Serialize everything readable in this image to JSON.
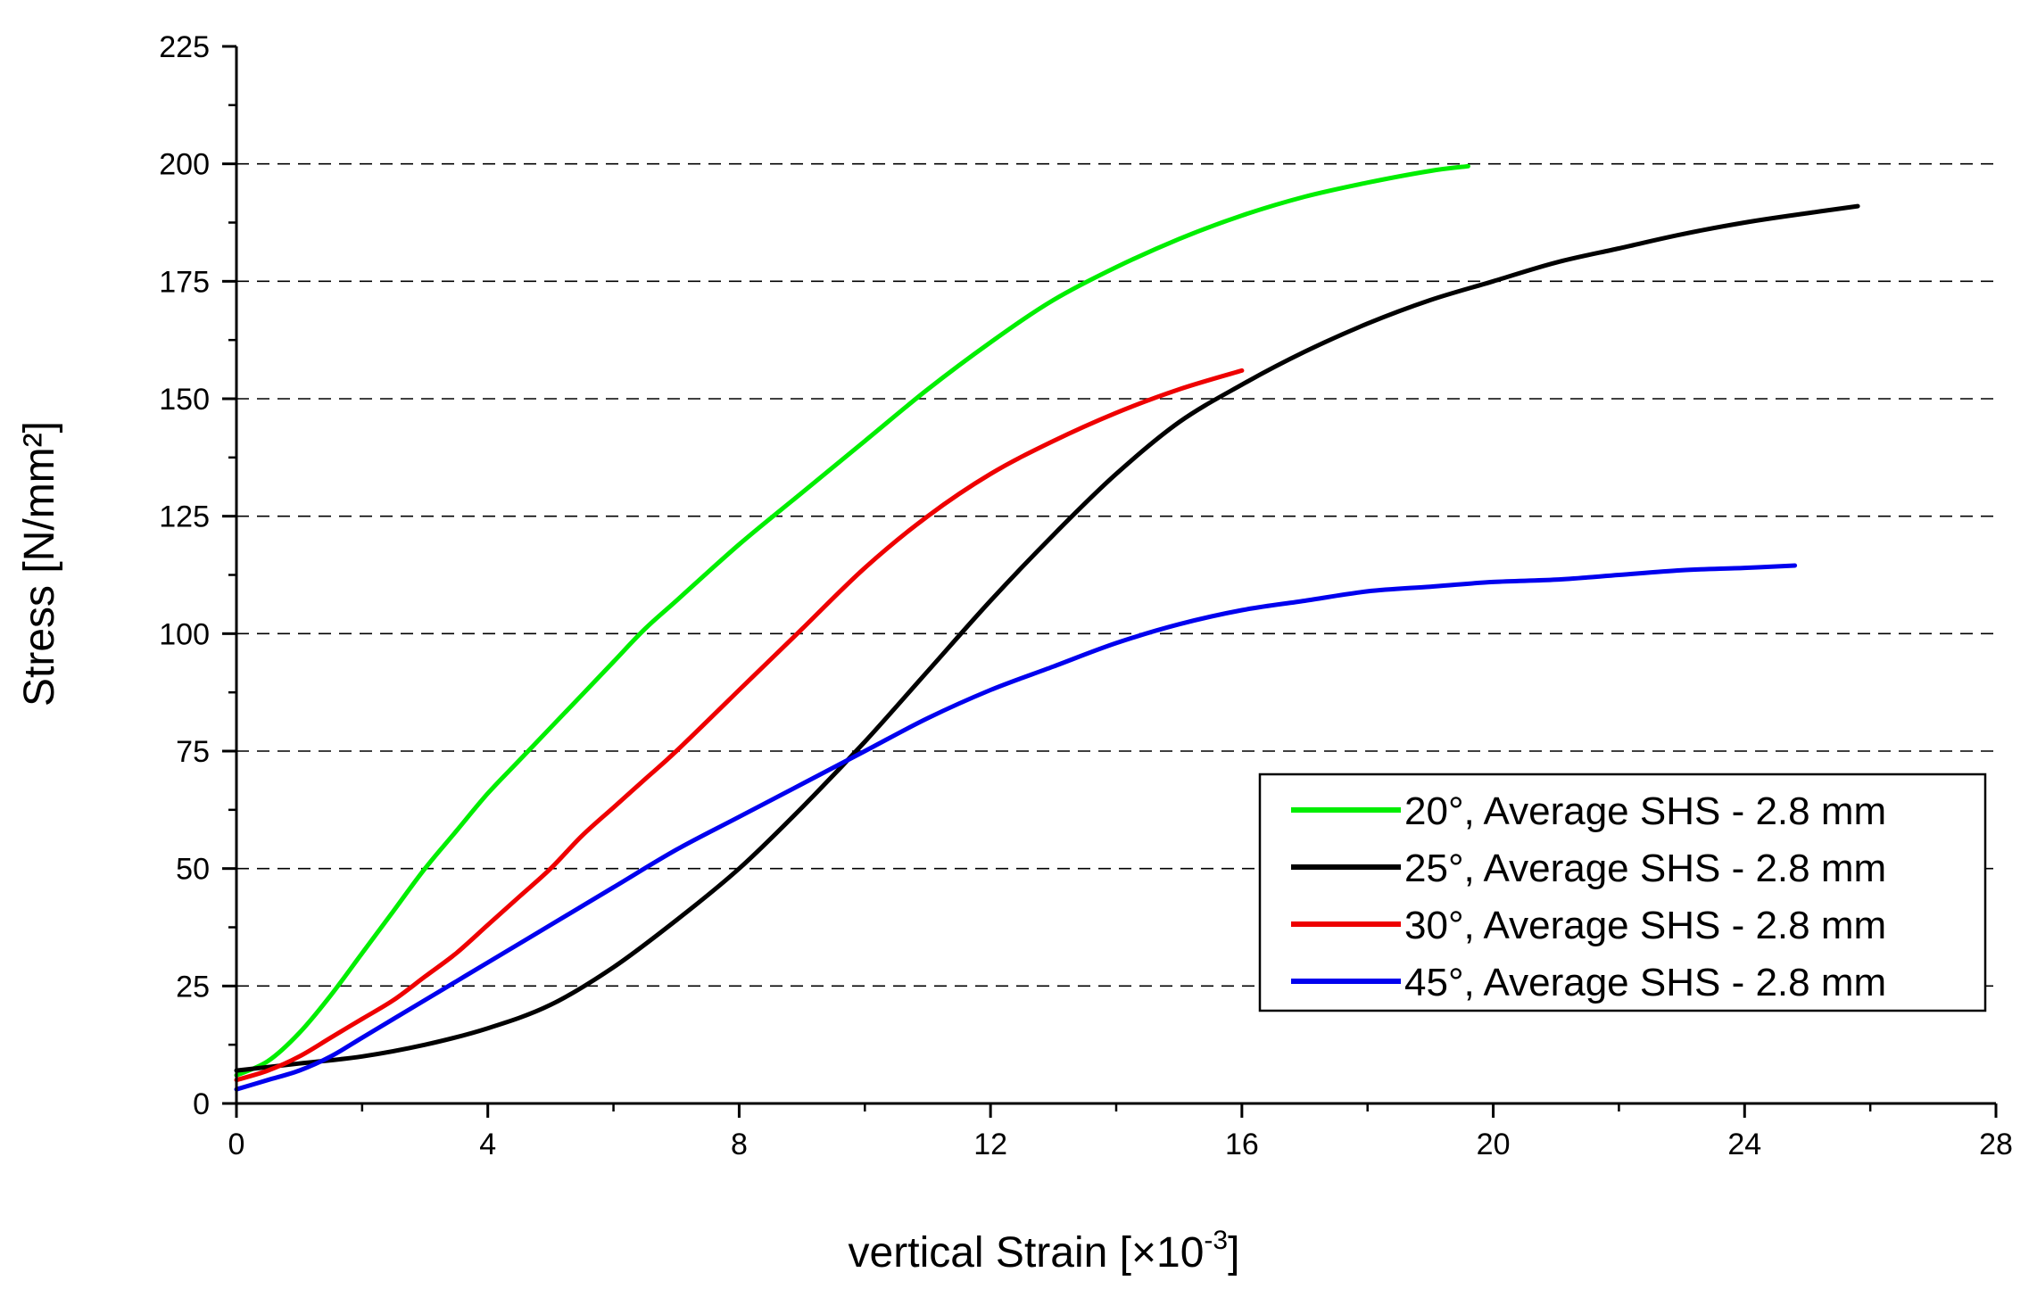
{
  "chart_data": {
    "type": "line",
    "title": "",
    "xlabel": "vertical Strain [×10",
    "xlabel_exponent": "-3",
    "xlabel_suffix": "]",
    "ylabel": "Stress [N/mm²]",
    "xlim": [
      0,
      28
    ],
    "ylim": [
      0,
      225
    ],
    "xticks": [
      0,
      4,
      8,
      12,
      16,
      20,
      24,
      28
    ],
    "xtick_labels": [
      "0",
      "4",
      "8",
      "12",
      "16",
      "20",
      "24",
      "28"
    ],
    "yticks": [
      0,
      25,
      50,
      75,
      100,
      125,
      150,
      175,
      200,
      225
    ],
    "ytick_labels": [
      "0",
      "25",
      "50",
      "75",
      "100",
      "125",
      "150",
      "175",
      "200",
      "225"
    ],
    "grid": "horizontal dashed",
    "legend_position": "lower-right",
    "series": [
      {
        "name": "20°, Average SHS - 2.8 mm",
        "color": "#00ee00",
        "x": [
          0,
          0.5,
          1,
          1.5,
          2,
          2.5,
          3,
          3.5,
          4,
          4.5,
          5,
          5.5,
          6,
          6.5,
          7,
          8,
          9,
          10,
          11,
          12,
          13,
          14,
          15,
          16,
          17,
          18,
          19,
          19.6
        ],
        "y": [
          6,
          9,
          15,
          23,
          32,
          41,
          50,
          58,
          66,
          73,
          80,
          87,
          94,
          101,
          107,
          119,
          130,
          141,
          152,
          162,
          171,
          178,
          184,
          189,
          193,
          196,
          198.5,
          199.5
        ]
      },
      {
        "name": "25°, Average SHS - 2.8 mm",
        "color": "#000000",
        "x": [
          0,
          1,
          2,
          3,
          4,
          5,
          6,
          7,
          8,
          9,
          10,
          11,
          12,
          13,
          14,
          15,
          16,
          17,
          18,
          19,
          20,
          21,
          22,
          23,
          24,
          25,
          25.8
        ],
        "y": [
          7,
          8.5,
          10,
          12.5,
          16,
          21,
          29,
          39,
          50,
          63,
          77,
          92,
          107,
          121,
          134,
          145,
          153,
          160,
          166,
          171,
          175,
          179,
          182,
          185,
          187.5,
          189.5,
          191
        ]
      },
      {
        "name": "30°, Average SHS - 2.8 mm",
        "color": "#ee0000",
        "x": [
          0,
          0.5,
          1,
          1.5,
          2,
          2.5,
          3,
          3.5,
          4,
          4.5,
          5,
          5.5,
          6,
          6.5,
          7,
          8,
          9,
          10,
          11,
          12,
          13,
          14,
          15,
          16
        ],
        "y": [
          5,
          7,
          10,
          14,
          18,
          22,
          27,
          32,
          38,
          44,
          50,
          57,
          63,
          69,
          75,
          88,
          101,
          114,
          125,
          134,
          141,
          147,
          152,
          156
        ]
      },
      {
        "name": "45°, Average SHS - 2.8 mm",
        "color": "#0000ee",
        "x": [
          0,
          0.5,
          1,
          1.5,
          2,
          2.5,
          3,
          3.5,
          4,
          5,
          6,
          7,
          8,
          9,
          10,
          11,
          12,
          13,
          14,
          15,
          16,
          17,
          18,
          19,
          20,
          21,
          22,
          23,
          24,
          24.8
        ],
        "y": [
          3,
          5,
          7,
          10,
          14,
          18,
          22,
          26,
          30,
          38,
          46,
          54,
          61,
          68,
          75,
          82,
          88,
          93,
          98,
          102,
          105,
          107,
          109,
          110,
          111,
          111.5,
          112.5,
          113.5,
          114,
          114.5
        ]
      }
    ]
  }
}
